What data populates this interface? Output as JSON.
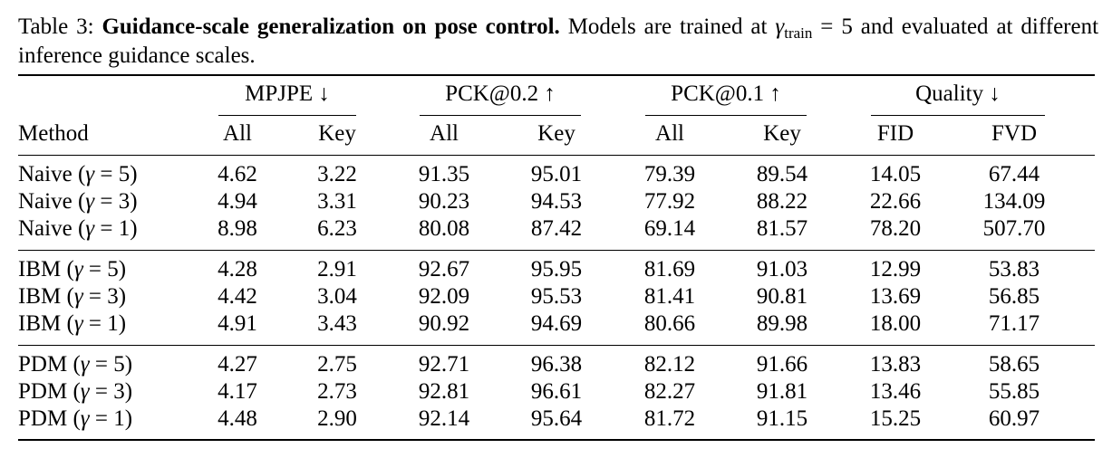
{
  "caption": {
    "label": "Table 3:",
    "title": "Guidance-scale generalization on pose control.",
    "text_before_math": "Models are trained at",
    "math_symbol": "γ",
    "math_subscript": "train",
    "math_rest": "= 5",
    "text_after_math": "and evaluated at different inference guidance scales."
  },
  "table": {
    "group_headers": [
      "MPJPE ↓",
      "PCK@0.2 ↑",
      "PCK@0.1 ↑",
      "Quality ↓"
    ],
    "method_header": "Method",
    "sub_headers": [
      "All",
      "Key",
      "All",
      "Key",
      "All",
      "Key",
      "FID",
      "FVD"
    ],
    "groups": [
      {
        "rows": [
          {
            "name": "Naive",
            "gamma": "5",
            "values": [
              "4.62",
              "3.22",
              "91.35",
              "95.01",
              "79.39",
              "89.54",
              "14.05",
              "67.44"
            ]
          },
          {
            "name": "Naive",
            "gamma": "3",
            "values": [
              "4.94",
              "3.31",
              "90.23",
              "94.53",
              "77.92",
              "88.22",
              "22.66",
              "134.09"
            ]
          },
          {
            "name": "Naive",
            "gamma": "1",
            "values": [
              "8.98",
              "6.23",
              "80.08",
              "87.42",
              "69.14",
              "81.57",
              "78.20",
              "507.70"
            ]
          }
        ]
      },
      {
        "rows": [
          {
            "name": "IBM",
            "gamma": "5",
            "values": [
              "4.28",
              "2.91",
              "92.67",
              "95.95",
              "81.69",
              "91.03",
              "12.99",
              "53.83"
            ]
          },
          {
            "name": "IBM",
            "gamma": "3",
            "values": [
              "4.42",
              "3.04",
              "92.09",
              "95.53",
              "81.41",
              "90.81",
              "13.69",
              "56.85"
            ]
          },
          {
            "name": "IBM",
            "gamma": "1",
            "values": [
              "4.91",
              "3.43",
              "90.92",
              "94.69",
              "80.66",
              "89.98",
              "18.00",
              "71.17"
            ]
          }
        ]
      },
      {
        "rows": [
          {
            "name": "PDM",
            "gamma": "5",
            "values": [
              "4.27",
              "2.75",
              "92.71",
              "96.38",
              "82.12",
              "91.66",
              "13.83",
              "58.65"
            ]
          },
          {
            "name": "PDM",
            "gamma": "3",
            "values": [
              "4.17",
              "2.73",
              "92.81",
              "96.61",
              "82.27",
              "91.81",
              "13.46",
              "55.85"
            ]
          },
          {
            "name": "PDM",
            "gamma": "1",
            "values": [
              "4.48",
              "2.90",
              "92.14",
              "95.64",
              "81.72",
              "91.15",
              "15.25",
              "60.97"
            ]
          }
        ]
      }
    ]
  }
}
